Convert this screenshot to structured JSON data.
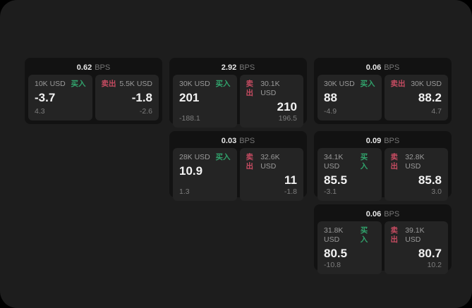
{
  "theme": {
    "outer_bg": "#000000",
    "panel_bg": "#1d1d1d",
    "card_bg": "#121212",
    "tile_bg": "#242424",
    "buy_color": "#31a36c",
    "sell_color": "#c54b61",
    "value_color": "#f2f2f2",
    "muted_color": "#9a9a9a"
  },
  "labels": {
    "bps_unit": "BPS",
    "buy": "买入",
    "sell": "卖出"
  },
  "cards": [
    {
      "bps": "0.62",
      "buy": {
        "amount": "10K USD",
        "value": "-3.7",
        "delta": "4.3"
      },
      "sell": {
        "amount": "5.5K USD",
        "value": "-1.8",
        "delta": "-2.6"
      }
    },
    {
      "bps": "2.92",
      "buy": {
        "amount": "30K USD",
        "value": "201",
        "delta": "-188.1"
      },
      "sell": {
        "amount": "30.1K USD",
        "value": "210",
        "delta": "196.5"
      }
    },
    {
      "bps": "0.06",
      "buy": {
        "amount": "30K USD",
        "value": "88",
        "delta": "-4.9"
      },
      "sell": {
        "amount": "30K USD",
        "value": "88.2",
        "delta": "4.7"
      }
    },
    {
      "bps": "0.03",
      "buy": {
        "amount": "28K USD",
        "value": "10.9",
        "delta": "1.3"
      },
      "sell": {
        "amount": "32.6K USD",
        "value": "11",
        "delta": "-1.8"
      }
    },
    {
      "bps": "0.09",
      "buy": {
        "amount": "34.1K USD",
        "value": "85.5",
        "delta": "-3.1"
      },
      "sell": {
        "amount": "32.8K USD",
        "value": "85.8",
        "delta": "3.0"
      }
    },
    {
      "bps": "0.06",
      "buy": {
        "amount": "31.8K USD",
        "value": "80.5",
        "delta": "-10.8"
      },
      "sell": {
        "amount": "39.1K USD",
        "value": "80.7",
        "delta": "10.2"
      }
    }
  ]
}
